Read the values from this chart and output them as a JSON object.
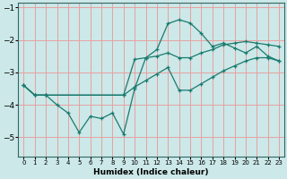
{
  "xlabel": "Humidex (Indice chaleur)",
  "bg_color": "#cce8e8",
  "grid_color": "#e8a0a0",
  "line_color": "#1a7a6e",
  "xlim": [
    -0.5,
    23.5
  ],
  "ylim": [
    -5.6,
    -0.85
  ],
  "yticks": [
    -5,
    -4,
    -3,
    -2,
    -1
  ],
  "xticks": [
    0,
    1,
    2,
    3,
    4,
    5,
    6,
    7,
    8,
    9,
    10,
    11,
    12,
    13,
    14,
    15,
    16,
    17,
    18,
    19,
    20,
    21,
    22,
    23
  ],
  "line1_x": [
    0,
    1,
    2,
    3,
    4,
    5,
    6,
    7,
    8,
    9,
    10,
    11,
    12,
    13,
    14,
    15,
    16,
    17,
    18,
    19,
    20,
    21,
    22,
    23
  ],
  "line1_y": [
    -3.4,
    -3.7,
    -3.7,
    -4.0,
    -4.25,
    -4.85,
    -4.35,
    -4.42,
    -4.25,
    -4.9,
    -3.5,
    -2.55,
    -2.3,
    -1.5,
    -1.38,
    -1.48,
    -1.8,
    -2.2,
    -2.1,
    -2.25,
    -2.4,
    -2.2,
    -2.5,
    -2.65
  ],
  "line2_x": [
    0,
    1,
    2,
    9,
    10,
    11,
    12,
    13,
    14,
    15,
    16,
    17,
    18,
    19,
    20,
    21,
    22,
    23
  ],
  "line2_y": [
    -3.4,
    -3.7,
    -3.7,
    -3.7,
    -2.6,
    -2.55,
    -2.5,
    -2.4,
    -2.55,
    -2.55,
    -2.4,
    -2.3,
    -2.15,
    -2.1,
    -2.05,
    -2.1,
    -2.15,
    -2.2
  ],
  "line3_x": [
    0,
    1,
    2,
    9,
    10,
    11,
    12,
    13,
    14,
    15,
    16,
    17,
    18,
    19,
    20,
    21,
    22,
    23
  ],
  "line3_y": [
    -3.4,
    -3.7,
    -3.7,
    -3.7,
    -3.45,
    -3.25,
    -3.05,
    -2.85,
    -3.55,
    -3.55,
    -3.35,
    -3.15,
    -2.95,
    -2.8,
    -2.65,
    -2.55,
    -2.55,
    -2.65
  ]
}
